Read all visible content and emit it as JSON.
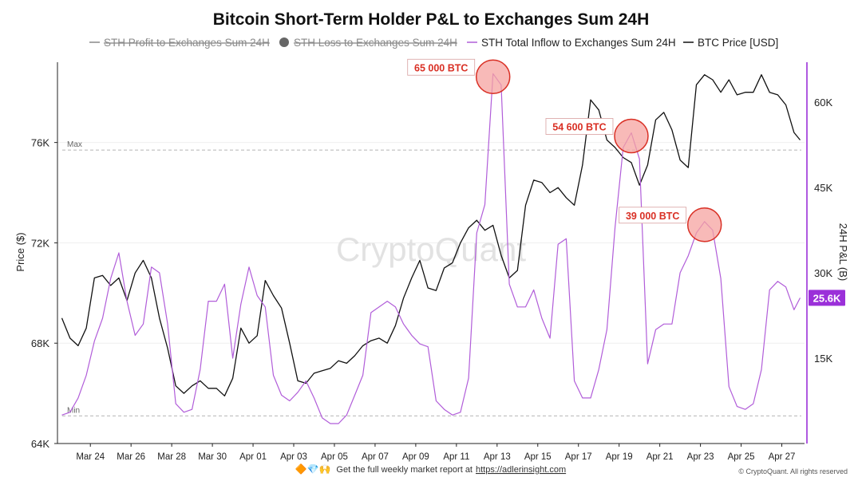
{
  "chart_data": {
    "type": "line",
    "title": "Bitcoin Short-Term Holder P&L to Exchanges Sum 24H",
    "legend": [
      {
        "name": "STH Profit to Exchanges Sum 24H",
        "color": "#888888",
        "disabled": true,
        "marker": "line"
      },
      {
        "name": "STH Loss to Exchanges Sum 24H",
        "color": "#666666",
        "disabled": true,
        "marker": "dot"
      },
      {
        "name": "STH Total Inflow to  Exchanges Sum 24H",
        "color": "#b15dd9",
        "disabled": false,
        "marker": "line"
      },
      {
        "name": "BTC Price [USD]",
        "color": "#111111",
        "disabled": false,
        "marker": "line"
      }
    ],
    "legend_position": "top-center",
    "y_left": {
      "label": "Price ($)",
      "ticks": [
        "64K",
        "68K",
        "72K",
        "76K"
      ],
      "range": [
        64000,
        79200
      ]
    },
    "y_right": {
      "label": "24H P&L (B)",
      "ticks": [
        "15K",
        "30K",
        "45K",
        "60K"
      ],
      "range": [
        0,
        67000
      ]
    },
    "x_ticks": [
      "Mar 24",
      "Mar 26",
      "Mar 28",
      "Mar 30",
      "Apr 01",
      "Apr 03",
      "Apr 05",
      "Apr 07",
      "Apr 09",
      "Apr 11",
      "Apr 13",
      "Apr 15",
      "Apr 17",
      "Apr 19",
      "Apr 21",
      "Apr 23",
      "Apr 25",
      "Apr 27"
    ],
    "reference_lines": [
      {
        "label": "Max",
        "value": 75700
      },
      {
        "label": "Min",
        "value": 65100
      }
    ],
    "current_value_badge": "25.6K",
    "grid": true,
    "series": [
      {
        "name": "BTC Price [USD]",
        "axis": "left",
        "color": "#111111",
        "x": [
          22.6,
          23.0,
          23.4,
          23.8,
          24.2,
          24.6,
          25.0,
          25.4,
          25.8,
          26.2,
          26.6,
          27.0,
          27.4,
          27.8,
          28.2,
          28.6,
          29.0,
          29.4,
          29.8,
          30.2,
          30.6,
          31.0,
          31.4,
          31.8,
          32.2,
          32.6,
          33.0,
          33.4,
          33.8,
          34.2,
          34.6,
          35.0,
          35.4,
          35.8,
          36.2,
          36.6,
          37.0,
          37.4,
          37.8,
          38.2,
          38.6,
          39.0,
          39.4,
          39.8,
          40.2,
          40.6,
          41.0,
          41.4,
          41.8,
          42.2,
          42.6,
          43.0,
          43.4,
          43.8,
          44.2,
          44.6,
          45.0,
          45.4,
          45.8,
          46.2,
          46.6,
          47.0,
          47.4,
          47.8,
          48.2,
          48.6,
          49.0,
          49.4,
          49.8,
          50.2,
          50.6,
          51.0,
          51.4,
          51.8,
          52.2,
          52.6,
          53.0,
          53.4,
          53.8,
          54.2,
          54.6,
          55.0,
          55.4,
          55.8,
          56.2,
          56.6,
          57.0,
          57.4,
          57.8,
          58.2,
          58.6,
          58.9
        ],
        "values": [
          69000,
          68200,
          67900,
          68600,
          70600,
          70700,
          70300,
          70600,
          69700,
          70800,
          71300,
          70600,
          69000,
          67800,
          66300,
          66000,
          66300,
          66500,
          66200,
          66200,
          65900,
          66600,
          68600,
          68000,
          68300,
          70500,
          69900,
          69400,
          68000,
          66500,
          66400,
          66800,
          66900,
          67000,
          67300,
          67200,
          67500,
          67900,
          68100,
          68200,
          68000,
          68700,
          69800,
          70600,
          71300,
          70200,
          70100,
          71000,
          71200,
          72000,
          72600,
          72900,
          72500,
          72700,
          71500,
          70600,
          70900,
          73500,
          74500,
          74400,
          74000,
          74200,
          73800,
          73500,
          75100,
          77700,
          77300,
          76100,
          75800,
          75400,
          75200,
          74300,
          75100,
          76900,
          77200,
          76500,
          75300,
          75000,
          78300,
          78700,
          78500,
          78000,
          78500,
          77900,
          78000,
          78000,
          78700,
          78000,
          77900,
          77500,
          76400,
          76100
        ]
      },
      {
        "name": "STH Total Inflow to  Exchanges Sum 24H",
        "axis": "right",
        "color": "#b15dd9",
        "x": [
          22.6,
          23.0,
          23.4,
          23.8,
          24.2,
          24.6,
          25.0,
          25.4,
          25.8,
          26.2,
          26.6,
          27.0,
          27.4,
          27.8,
          28.2,
          28.6,
          29.0,
          29.4,
          29.8,
          30.2,
          30.6,
          31.0,
          31.4,
          31.8,
          32.2,
          32.6,
          33.0,
          33.4,
          33.8,
          34.2,
          34.6,
          35.0,
          35.4,
          35.8,
          36.2,
          36.6,
          37.0,
          37.4,
          37.8,
          38.2,
          38.6,
          39.0,
          39.4,
          39.8,
          40.2,
          40.6,
          41.0,
          41.4,
          41.8,
          42.2,
          42.6,
          43.0,
          43.4,
          43.8,
          44.2,
          44.6,
          45.0,
          45.4,
          45.8,
          46.2,
          46.6,
          47.0,
          47.4,
          47.8,
          48.2,
          48.6,
          49.0,
          49.4,
          49.8,
          50.2,
          50.6,
          51.0,
          51.4,
          51.8,
          52.2,
          52.6,
          53.0,
          53.4,
          53.8,
          54.2,
          54.6,
          55.0,
          55.4,
          55.8,
          56.2,
          56.6,
          57.0,
          57.4,
          57.8,
          58.2,
          58.6,
          58.9
        ],
        "values": [
          5000,
          5500,
          8000,
          12000,
          18000,
          22000,
          29000,
          33500,
          25000,
          19000,
          21000,
          31000,
          30000,
          21000,
          7000,
          5500,
          6000,
          13000,
          25000,
          25000,
          28000,
          15000,
          24500,
          31000,
          26000,
          24000,
          12000,
          8500,
          7500,
          9000,
          11000,
          8000,
          4500,
          3500,
          3500,
          5000,
          8500,
          12000,
          23000,
          24000,
          25000,
          24000,
          21000,
          19000,
          17500,
          17000,
          7500,
          6000,
          5000,
          5500,
          11500,
          37000,
          42000,
          65000,
          63000,
          28000,
          24000,
          24000,
          27000,
          22000,
          18500,
          35000,
          36000,
          11000,
          8000,
          8000,
          13000,
          20000,
          38000,
          52000,
          54600,
          50000,
          14000,
          20000,
          21000,
          21000,
          30000,
          33000,
          37000,
          39000,
          37500,
          29000,
          10000,
          6500,
          6000,
          7000,
          13000,
          27000,
          28500,
          27500,
          23500,
          25600
        ]
      }
    ],
    "annotations": [
      {
        "text": "65 000 BTC",
        "x": 43.8,
        "value": 65000
      },
      {
        "text": "54 600 BTC",
        "x": 50.6,
        "value": 54600
      },
      {
        "text": "39 000 BTC",
        "x": 54.2,
        "value": 39000
      }
    ]
  },
  "watermark": "CryptoQuant",
  "footer": {
    "icons": "🔶💎🙌",
    "message": "Get the full weekly market report at",
    "link": "https://adlerinsight.com",
    "copyright": "© CryptoQuant. All rights reserved"
  },
  "colors": {
    "price": "#111111",
    "inflow": "#b15dd9",
    "annotation": "#d93025",
    "annotation_fill": "#f5a3a0",
    "badge": "#9b30d9"
  }
}
